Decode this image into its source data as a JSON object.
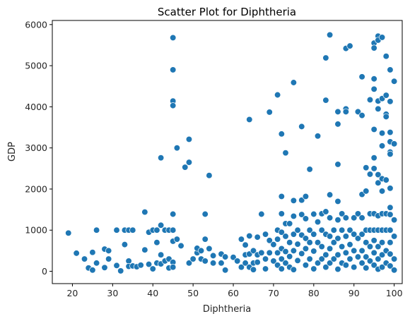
{
  "chart_data": {
    "type": "scatter",
    "title": "Scatter Plot for Diphtheria",
    "xlabel": "Diphtheria",
    "ylabel": "GDP",
    "xlim": [
      15,
      102
    ],
    "ylim": [
      -300,
      6100
    ],
    "xticks": [
      20,
      30,
      40,
      50,
      60,
      70,
      80,
      90,
      100
    ],
    "yticks": [
      0,
      1000,
      2000,
      3000,
      4000,
      5000,
      6000
    ],
    "grid": false,
    "legend": "none",
    "point_color": "#1f77b4",
    "points": [
      [
        19,
        930
      ],
      [
        21,
        440
      ],
      [
        23,
        300
      ],
      [
        24,
        80
      ],
      [
        25,
        460
      ],
      [
        25,
        30
      ],
      [
        26,
        1000
      ],
      [
        26,
        200
      ],
      [
        28,
        540
      ],
      [
        28,
        90
      ],
      [
        29,
        500
      ],
      [
        29,
        300
      ],
      [
        31,
        1000
      ],
      [
        31,
        140
      ],
      [
        32,
        10
      ],
      [
        33,
        1000
      ],
      [
        33,
        650
      ],
      [
        34,
        250
      ],
      [
        34,
        1000
      ],
      [
        34,
        120
      ],
      [
        35,
        1000
      ],
      [
        35,
        130
      ],
      [
        36,
        110
      ],
      [
        37,
        150
      ],
      [
        38,
        1440
      ],
      [
        38,
        520
      ],
      [
        39,
        950
      ],
      [
        39,
        170
      ],
      [
        40,
        1000
      ],
      [
        40,
        60
      ],
      [
        41,
        700
      ],
      [
        41,
        200
      ],
      [
        41,
        1000
      ],
      [
        42,
        1120
      ],
      [
        42,
        2760
      ],
      [
        42,
        400
      ],
      [
        42,
        180
      ],
      [
        43,
        250
      ],
      [
        43,
        1000
      ],
      [
        44,
        300
      ],
      [
        44,
        80
      ],
      [
        44,
        1000
      ],
      [
        45,
        5680
      ],
      [
        45,
        4900
      ],
      [
        45,
        4140
      ],
      [
        45,
        4030
      ],
      [
        45,
        1390
      ],
      [
        45,
        730
      ],
      [
        45,
        1000
      ],
      [
        45,
        220
      ],
      [
        45,
        100
      ],
      [
        46,
        3000
      ],
      [
        46,
        780
      ],
      [
        47,
        620
      ],
      [
        48,
        2530
      ],
      [
        49,
        2650
      ],
      [
        49,
        3210
      ],
      [
        49,
        200
      ],
      [
        50,
        300
      ],
      [
        51,
        450
      ],
      [
        51,
        560
      ],
      [
        52,
        500
      ],
      [
        52,
        300
      ],
      [
        53,
        1390
      ],
      [
        53,
        780
      ],
      [
        53,
        250
      ],
      [
        54,
        2330
      ],
      [
        54,
        550
      ],
      [
        55,
        200
      ],
      [
        55,
        380
      ],
      [
        57,
        420
      ],
      [
        57,
        200
      ],
      [
        58,
        350
      ],
      [
        58,
        30
      ],
      [
        60,
        340
      ],
      [
        61,
        250
      ],
      [
        62,
        780
      ],
      [
        62,
        100
      ],
      [
        63,
        400
      ],
      [
        63,
        640
      ],
      [
        63,
        200
      ],
      [
        64,
        3690
      ],
      [
        64,
        420
      ],
      [
        64,
        860
      ],
      [
        64,
        100
      ],
      [
        65,
        500
      ],
      [
        65,
        200
      ],
      [
        65,
        40
      ],
      [
        66,
        830
      ],
      [
        66,
        400
      ],
      [
        66,
        220
      ],
      [
        67,
        1390
      ],
      [
        67,
        450
      ],
      [
        68,
        900
      ],
      [
        68,
        300
      ],
      [
        68,
        60
      ],
      [
        69,
        3870
      ],
      [
        69,
        750
      ],
      [
        69,
        450
      ],
      [
        70,
        650
      ],
      [
        70,
        250
      ],
      [
        71,
        4290
      ],
      [
        71,
        1000
      ],
      [
        71,
        780
      ],
      [
        71,
        450
      ],
      [
        71,
        150
      ],
      [
        72,
        3340
      ],
      [
        72,
        1820
      ],
      [
        72,
        1400
      ],
      [
        72,
        950
      ],
      [
        72,
        550
      ],
      [
        72,
        300
      ],
      [
        72,
        60
      ],
      [
        73,
        2880
      ],
      [
        73,
        1160
      ],
      [
        73,
        850
      ],
      [
        73,
        480
      ],
      [
        73,
        200
      ],
      [
        74,
        1160
      ],
      [
        74,
        700
      ],
      [
        74,
        360
      ],
      [
        74,
        100
      ],
      [
        75,
        4590
      ],
      [
        75,
        1720
      ],
      [
        75,
        1340
      ],
      [
        75,
        900
      ],
      [
        75,
        500
      ],
      [
        75,
        40
      ],
      [
        76,
        1000
      ],
      [
        76,
        660
      ],
      [
        76,
        260
      ],
      [
        77,
        3520
      ],
      [
        77,
        1730
      ],
      [
        77,
        1380
      ],
      [
        77,
        880
      ],
      [
        77,
        430
      ],
      [
        78,
        1820
      ],
      [
        78,
        1280
      ],
      [
        78,
        800
      ],
      [
        78,
        550
      ],
      [
        78,
        150
      ],
      [
        79,
        2480
      ],
      [
        79,
        1000
      ],
      [
        79,
        700
      ],
      [
        79,
        300
      ],
      [
        80,
        1390
      ],
      [
        80,
        900
      ],
      [
        80,
        490
      ],
      [
        80,
        60
      ],
      [
        81,
        3290
      ],
      [
        81,
        1200
      ],
      [
        81,
        700
      ],
      [
        81,
        200
      ],
      [
        82,
        1400
      ],
      [
        82,
        1000
      ],
      [
        82,
        600
      ],
      [
        82,
        300
      ],
      [
        83,
        5190
      ],
      [
        83,
        4160
      ],
      [
        83,
        1450
      ],
      [
        83,
        900
      ],
      [
        83,
        400
      ],
      [
        83,
        100
      ],
      [
        84,
        5750
      ],
      [
        84,
        1860
      ],
      [
        84,
        1300
      ],
      [
        84,
        850
      ],
      [
        84,
        550
      ],
      [
        84,
        200
      ],
      [
        85,
        1000
      ],
      [
        85,
        700
      ],
      [
        85,
        300
      ],
      [
        86,
        3880
      ],
      [
        86,
        3580
      ],
      [
        86,
        2600
      ],
      [
        86,
        1700
      ],
      [
        86,
        1250
      ],
      [
        86,
        800
      ],
      [
        86,
        400
      ],
      [
        86,
        50
      ],
      [
        87,
        1400
      ],
      [
        87,
        1000
      ],
      [
        87,
        600
      ],
      [
        87,
        200
      ],
      [
        88,
        5420
      ],
      [
        88,
        3950
      ],
      [
        88,
        3880
      ],
      [
        88,
        1300
      ],
      [
        88,
        850
      ],
      [
        88,
        450
      ],
      [
        88,
        150
      ],
      [
        89,
        5480
      ],
      [
        89,
        1000
      ],
      [
        89,
        650
      ],
      [
        89,
        300
      ],
      [
        90,
        1300
      ],
      [
        90,
        900
      ],
      [
        90,
        500
      ],
      [
        90,
        100
      ],
      [
        91,
        3880
      ],
      [
        91,
        1400
      ],
      [
        91,
        800
      ],
      [
        91,
        350
      ],
      [
        92,
        4730
      ],
      [
        92,
        3790
      ],
      [
        92,
        1870
      ],
      [
        92,
        1300
      ],
      [
        92,
        900
      ],
      [
        92,
        500
      ],
      [
        92,
        200
      ],
      [
        93,
        2520
      ],
      [
        93,
        1950
      ],
      [
        93,
        1000
      ],
      [
        93,
        700
      ],
      [
        93,
        350
      ],
      [
        93,
        80
      ],
      [
        94,
        4170
      ],
      [
        94,
        2360
      ],
      [
        94,
        1400
      ],
      [
        94,
        1000
      ],
      [
        94,
        600
      ],
      [
        94,
        250
      ],
      [
        95,
        5550
      ],
      [
        95,
        5430
      ],
      [
        95,
        4680
      ],
      [
        95,
        4430
      ],
      [
        95,
        3450
      ],
      [
        95,
        2760
      ],
      [
        95,
        2500
      ],
      [
        95,
        1400
      ],
      [
        95,
        1000
      ],
      [
        95,
        750
      ],
      [
        95,
        450
      ],
      [
        95,
        150
      ],
      [
        96,
        5720
      ],
      [
        96,
        5620
      ],
      [
        96,
        4140
      ],
      [
        96,
        3950
      ],
      [
        96,
        2350
      ],
      [
        96,
        2150
      ],
      [
        96,
        1350
      ],
      [
        96,
        1000
      ],
      [
        96,
        600
      ],
      [
        96,
        300
      ],
      [
        96,
        50
      ],
      [
        97,
        5690
      ],
      [
        97,
        4200
      ],
      [
        97,
        3360
      ],
      [
        97,
        3050
      ],
      [
        97,
        2250
      ],
      [
        97,
        1950
      ],
      [
        97,
        1400
      ],
      [
        97,
        1000
      ],
      [
        97,
        700
      ],
      [
        97,
        400
      ],
      [
        97,
        100
      ],
      [
        98,
        5230
      ],
      [
        98,
        4280
      ],
      [
        98,
        3820
      ],
      [
        98,
        3760
      ],
      [
        98,
        2220
      ],
      [
        98,
        1400
      ],
      [
        98,
        1000
      ],
      [
        98,
        500
      ],
      [
        98,
        200
      ],
      [
        99,
        4900
      ],
      [
        99,
        4130
      ],
      [
        99,
        3380
      ],
      [
        99,
        3150
      ],
      [
        99,
        2900
      ],
      [
        99,
        2850
      ],
      [
        99,
        2020
      ],
      [
        99,
        1550
      ],
      [
        99,
        1380
      ],
      [
        99,
        1000
      ],
      [
        99,
        700
      ],
      [
        99,
        420
      ],
      [
        99,
        130
      ],
      [
        100,
        4620
      ],
      [
        100,
        3100
      ],
      [
        100,
        1250
      ],
      [
        100,
        850
      ],
      [
        100,
        300
      ],
      [
        100,
        30
      ]
    ]
  }
}
